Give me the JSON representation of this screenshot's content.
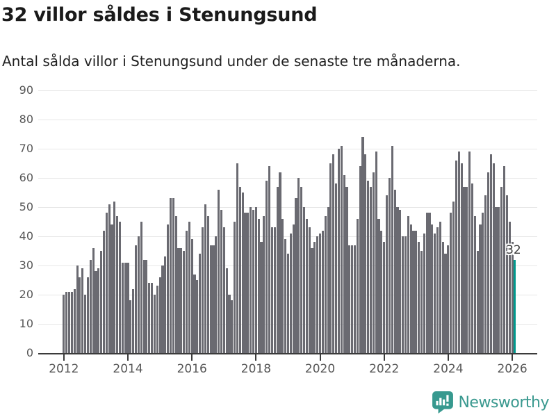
{
  "header": {
    "title": "32 villor såldes i Stenungsund",
    "subtitle": "Antal sålda villor i Stenungsund under de senaste tre månaderna."
  },
  "chart_data": {
    "type": "bar",
    "title": "32 villor såldes i Stenungsund",
    "subtitle": "Antal sålda villor i Stenungsund under de senaste tre månaderna.",
    "x_unit": "month",
    "x_range": "2012 to 2026",
    "ylim": [
      0,
      90
    ],
    "yticks": [
      0,
      10,
      20,
      30,
      40,
      50,
      60,
      70,
      80,
      90
    ],
    "xticks": [
      2012,
      2014,
      2016,
      2018,
      2020,
      2022,
      2024,
      2026
    ],
    "grid": "horizontal",
    "legend": "none",
    "bar_color": "#6a6a71",
    "highlight_color": "#00998d",
    "highlight_last": true,
    "annotation": {
      "text": "32",
      "target": "last-bar"
    },
    "values": [
      20,
      21,
      21,
      21,
      22,
      30,
      26,
      29,
      20,
      26,
      32,
      36,
      28,
      29,
      35,
      42,
      48,
      51,
      44,
      52,
      47,
      45,
      31,
      31,
      31,
      18,
      22,
      37,
      40,
      45,
      32,
      32,
      24,
      24,
      20,
      23,
      26,
      30,
      33,
      44,
      53,
      53,
      47,
      36,
      36,
      35,
      42,
      45,
      39,
      27,
      25,
      34,
      43,
      51,
      47,
      37,
      37,
      40,
      56,
      49,
      43,
      29,
      20,
      18,
      45,
      65,
      57,
      55,
      48,
      48,
      50,
      49,
      50,
      46,
      38,
      47,
      59,
      64,
      43,
      43,
      57,
      62,
      46,
      39,
      34,
      41,
      44,
      53,
      60,
      57,
      50,
      46,
      43,
      36,
      38,
      40,
      41,
      42,
      47,
      50,
      65,
      68,
      58,
      70,
      71,
      61,
      57,
      37,
      37,
      37,
      46,
      64,
      74,
      68,
      59,
      57,
      62,
      69,
      46,
      42,
      38,
      54,
      60,
      71,
      56,
      50,
      49,
      40,
      40,
      47,
      44,
      42,
      42,
      38,
      35,
      41,
      48,
      48,
      44,
      41,
      43,
      45,
      38,
      34,
      37,
      48,
      52,
      66,
      69,
      65,
      57,
      57,
      69,
      58,
      47,
      35,
      44,
      48,
      54,
      62,
      68,
      65,
      50,
      50,
      57,
      64,
      54,
      45,
      38,
      32
    ]
  },
  "footer": {
    "brand": "Newsworthy",
    "logo_icon": "newsworthy-chart-bubble-icon",
    "brand_color": "#3a998f"
  }
}
